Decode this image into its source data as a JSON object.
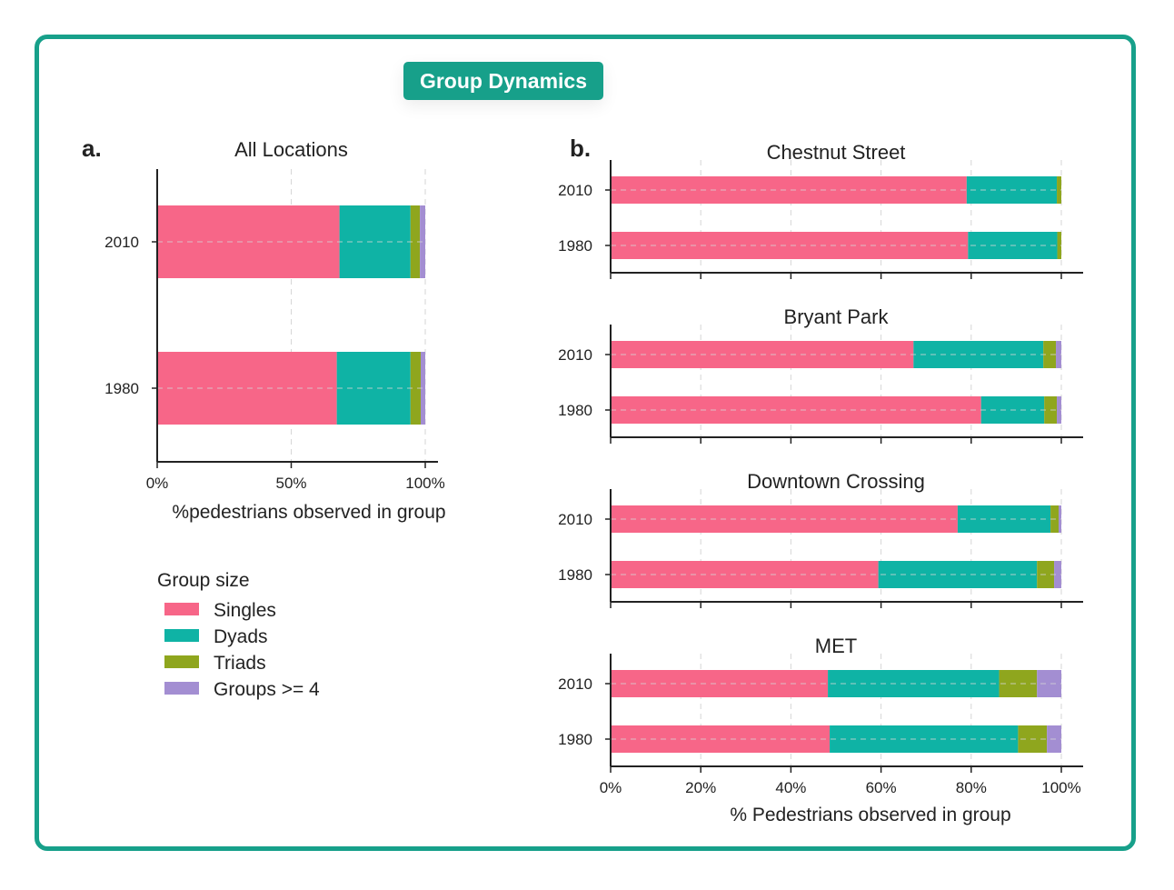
{
  "header": {
    "title": "Group Dynamics"
  },
  "colors": {
    "Singles": "#f76688",
    "Dyads": "#0fb3a5",
    "Triads": "#8fa61e",
    "Groups >= 4": "#a38ed2",
    "frame": "#17a08a"
  },
  "legend": {
    "title": "Group size",
    "items": [
      "Singles",
      "Dyads",
      "Triads",
      "Groups >= 4"
    ]
  },
  "chart_data": [
    {
      "type": "bar",
      "orientation": "horizontal",
      "stacked": true,
      "panel_label": "a.",
      "title": "All Locations",
      "categories": [
        "2010",
        "1980"
      ],
      "series": [
        {
          "name": "Singles",
          "values": [
            68,
            67
          ]
        },
        {
          "name": "Dyads",
          "values": [
            26.5,
            27.5
          ]
        },
        {
          "name": "Triads",
          "values": [
            3.5,
            3.8
          ]
        },
        {
          "name": "Groups >= 4",
          "values": [
            2,
            1.7
          ]
        }
      ],
      "xlabel": "%pedestrians observed in group",
      "xticks": [
        "0%",
        "50%",
        "100%"
      ],
      "xlim": [
        0,
        100
      ],
      "grid": true
    },
    {
      "type": "bar",
      "orientation": "horizontal",
      "stacked": true,
      "panel_label": "b.",
      "xlabel": "% Pedestrians observed in group",
      "xticks": [
        "0%",
        "20%",
        "40%",
        "60%",
        "80%",
        "100%"
      ],
      "xlim": [
        0,
        100
      ],
      "grid": true,
      "panels": [
        {
          "title": "Chestnut Street",
          "categories": [
            "2010",
            "1980"
          ],
          "series": [
            {
              "name": "Singles",
              "values": [
                79,
                79.3
              ]
            },
            {
              "name": "Dyads",
              "values": [
                20,
                19.8
              ]
            },
            {
              "name": "Triads",
              "values": [
                1,
                0.9
              ]
            },
            {
              "name": "Groups >= 4",
              "values": [
                0,
                0
              ]
            }
          ]
        },
        {
          "title": "Bryant Park",
          "categories": [
            "2010",
            "1980"
          ],
          "series": [
            {
              "name": "Singles",
              "values": [
                67.2,
                82.2
              ]
            },
            {
              "name": "Dyads",
              "values": [
                28.8,
                14
              ]
            },
            {
              "name": "Triads",
              "values": [
                2.8,
                2.8
              ]
            },
            {
              "name": "Groups >= 4",
              "values": [
                1.2,
                1
              ]
            }
          ]
        },
        {
          "title": "Downtown Crossing",
          "categories": [
            "2010",
            "1980"
          ],
          "series": [
            {
              "name": "Singles",
              "values": [
                77,
                59.4
              ]
            },
            {
              "name": "Dyads",
              "values": [
                20.6,
                35.2
              ]
            },
            {
              "name": "Triads",
              "values": [
                1.8,
                3.8
              ]
            },
            {
              "name": "Groups >= 4",
              "values": [
                0.6,
                1.6
              ]
            }
          ]
        },
        {
          "title": "MET",
          "categories": [
            "2010",
            "1980"
          ],
          "series": [
            {
              "name": "Singles",
              "values": [
                48.2,
                48.6
              ]
            },
            {
              "name": "Dyads",
              "values": [
                38,
                41.8
              ]
            },
            {
              "name": "Triads",
              "values": [
                8.4,
                6.4
              ]
            },
            {
              "name": "Groups >= 4",
              "values": [
                5.4,
                3.2
              ]
            }
          ]
        }
      ]
    }
  ]
}
